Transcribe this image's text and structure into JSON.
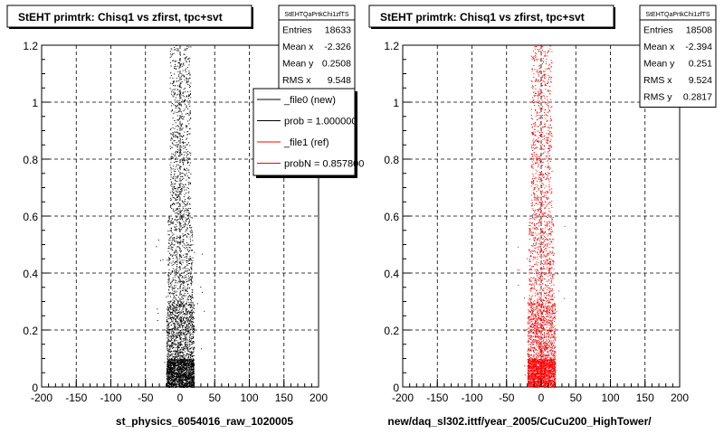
{
  "chart_data": [
    {
      "type": "scatter",
      "title": "StEHT primtrk: Chisq1 vs zfirst, tpc+svt",
      "xlabel": "st_physics_6054016_raw_1020005",
      "ylabel": "",
      "xlim": [
        -200,
        200
      ],
      "ylim": [
        0,
        1.2
      ],
      "x_ticks": [
        "-200",
        "-150",
        "-100",
        "-50",
        "0",
        "50",
        "100",
        "150",
        "200"
      ],
      "y_ticks": [
        "0",
        "0.2",
        "0.4",
        "0.6",
        "0.8",
        "1",
        "1.2"
      ],
      "grid": true,
      "point_color": "#000000",
      "density_bands": [
        {
          "x_range": [
            -20,
            20
          ],
          "y_range": [
            0.0,
            0.1
          ],
          "weight": 1600
        },
        {
          "x_range": [
            -20,
            20
          ],
          "y_range": [
            0.1,
            0.3
          ],
          "weight": 900
        },
        {
          "x_range": [
            -18,
            18
          ],
          "y_range": [
            0.3,
            0.6
          ],
          "weight": 550
        },
        {
          "x_range": [
            -15,
            15
          ],
          "y_range": [
            0.6,
            0.9
          ],
          "weight": 400
        },
        {
          "x_range": [
            -15,
            15
          ],
          "y_range": [
            0.9,
            1.2
          ],
          "weight": 300
        },
        {
          "x_range": [
            -35,
            35
          ],
          "y_range": [
            0.0,
            0.6
          ],
          "weight": 40
        }
      ],
      "stats": {
        "name": "StEHTQaPrtkChi1zfTS",
        "rows": [
          {
            "label": "Entries",
            "value": "18633"
          },
          {
            "label": "Mean x",
            "value": "-2.326"
          },
          {
            "label": "Mean y",
            "value": "0.2508"
          },
          {
            "label": "RMS x",
            "value": "9.548"
          }
        ]
      },
      "legend": {
        "placement": "top-right",
        "entries": [
          {
            "label": "_file0 (new)",
            "color": "#000000"
          },
          {
            "label": "prob = 1.000000",
            "color": "#000000"
          },
          {
            "label": "_file1 (ref)",
            "color": "#ff0000"
          },
          {
            "label": "probN = 0.857800",
            "color": "#ff0000"
          }
        ]
      }
    },
    {
      "type": "scatter",
      "title": "StEHT primtrk: Chisq1 vs zfirst, tpc+svt",
      "xlabel": "new/daq_sl302.ittf/year_2005/CuCu200_HighTower/",
      "ylabel": "",
      "xlim": [
        -200,
        200
      ],
      "ylim": [
        0,
        1.2
      ],
      "x_ticks": [
        "-200",
        "-150",
        "-100",
        "-50",
        "0",
        "50",
        "100",
        "150",
        "200"
      ],
      "y_ticks": [
        "0",
        "0.2",
        "0.4",
        "0.6",
        "0.8",
        "1",
        "1.2"
      ],
      "grid": true,
      "point_color": "#ff0000",
      "density_bands": [
        {
          "x_range": [
            -20,
            20
          ],
          "y_range": [
            0.0,
            0.1
          ],
          "weight": 1600
        },
        {
          "x_range": [
            -20,
            20
          ],
          "y_range": [
            0.1,
            0.3
          ],
          "weight": 900
        },
        {
          "x_range": [
            -18,
            18
          ],
          "y_range": [
            0.3,
            0.6
          ],
          "weight": 550
        },
        {
          "x_range": [
            -15,
            15
          ],
          "y_range": [
            0.6,
            0.9
          ],
          "weight": 400
        },
        {
          "x_range": [
            -15,
            15
          ],
          "y_range": [
            0.9,
            1.2
          ],
          "weight": 300
        },
        {
          "x_range": [
            -35,
            35
          ],
          "y_range": [
            0.0,
            0.6
          ],
          "weight": 40
        }
      ],
      "stats": {
        "name": "StEHTQaPrtkChi1zfTS",
        "rows": [
          {
            "label": "Entries",
            "value": "18508"
          },
          {
            "label": "Mean x",
            "value": "-2.394"
          },
          {
            "label": "Mean y",
            "value": "0.251"
          },
          {
            "label": "RMS x",
            "value": "9.524"
          },
          {
            "label": "RMS y",
            "value": "0.2817"
          }
        ]
      }
    }
  ]
}
